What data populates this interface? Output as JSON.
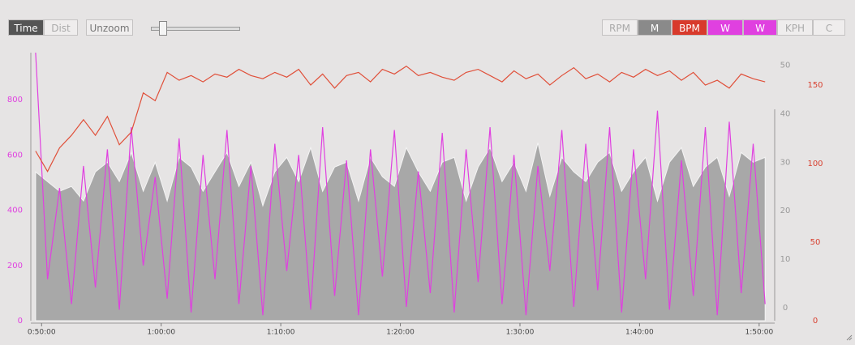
{
  "toolbar": {
    "left": [
      "Time",
      "Dist",
      "Unzoom"
    ],
    "right": [
      "RPM",
      "M",
      "BPM",
      "W",
      "W",
      "KPH",
      "C"
    ]
  },
  "chart_data": {
    "type": "line",
    "x": [
      49.5,
      50.5,
      51.5,
      52.5,
      53.5,
      54.5,
      55.5,
      56.5,
      57.5,
      58.5,
      59.5,
      60.5,
      61.5,
      62.5,
      63.5,
      64.5,
      65.5,
      66.5,
      67.5,
      68.5,
      69.5,
      70.5,
      71.5,
      72.5,
      73.5,
      74.5,
      75.5,
      76.5,
      77.5,
      78.5,
      79.5,
      80.5,
      81.5,
      82.5,
      83.5,
      84.5,
      85.5,
      86.5,
      87.5,
      88.5,
      89.5,
      90.5,
      91.5,
      92.5,
      93.5,
      94.5,
      95.5,
      96.5,
      97.5,
      98.5,
      99.5,
      100.5,
      101.5,
      102.5,
      103.5,
      104.5,
      105.5,
      106.5,
      107.5,
      108.5,
      109.5,
      110.5
    ],
    "xlim": [
      49.1,
      111.3
    ],
    "xticks": [
      {
        "value": 50,
        "label": "0:50:00"
      },
      {
        "value": 60,
        "label": "1:00:00"
      },
      {
        "value": 70,
        "label": "1:10:00"
      },
      {
        "value": 80,
        "label": "1:20:00"
      },
      {
        "value": 90,
        "label": "1:30:00"
      },
      {
        "value": 100,
        "label": "1:40:00"
      },
      {
        "value": 110,
        "label": "1:50:00"
      }
    ],
    "ylim": [
      0,
      970
    ],
    "yticks": [
      0,
      200,
      400,
      600,
      800
    ],
    "ytick_color": "#e040e0",
    "y2lim": [
      -2.7,
      52.6
    ],
    "y2ticks": [
      0,
      10,
      20,
      30,
      40,
      50
    ],
    "y2tick_color": "#999999",
    "y3lim": [
      0,
      170.6
    ],
    "y3ticks": [
      0,
      50,
      100,
      150
    ],
    "y3tick_color": "#d84030",
    "series": [
      {
        "kind": "area",
        "axis": "y2",
        "color": "#a8a8a8",
        "values": [
          28,
          26,
          24,
          25,
          22,
          28,
          30,
          26,
          32,
          24,
          30,
          22,
          31,
          29,
          24,
          28,
          32,
          25,
          30,
          21,
          28,
          31,
          26,
          33,
          24,
          29,
          30,
          22,
          31,
          27,
          25,
          33,
          28,
          24,
          30,
          31,
          22,
          29,
          33,
          26,
          30,
          24,
          34,
          23,
          31,
          28,
          26,
          30,
          32,
          24,
          28,
          31,
          22,
          30,
          33,
          25,
          29,
          31,
          23,
          32,
          30,
          31
        ]
      },
      {
        "kind": "line",
        "color": "#e040e0",
        "values": [
          970,
          150,
          480,
          60,
          560,
          120,
          620,
          40,
          700,
          200,
          520,
          80,
          660,
          30,
          600,
          150,
          690,
          60,
          560,
          20,
          640,
          180,
          600,
          40,
          700,
          90,
          580,
          20,
          620,
          160,
          690,
          50,
          540,
          100,
          680,
          30,
          620,
          140,
          700,
          60,
          600,
          20,
          560,
          180,
          690,
          50,
          640,
          110,
          700,
          30,
          620,
          150,
          760,
          40,
          580,
          90,
          700,
          20,
          720,
          100,
          640,
          60
        ]
      },
      {
        "kind": "line",
        "axis": "y3",
        "color": "#e0503a",
        "values": [
          108,
          95,
          110,
          118,
          128,
          118,
          130,
          112,
          120,
          145,
          140,
          158,
          153,
          156,
          152,
          157,
          155,
          160,
          156,
          154,
          158,
          155,
          160,
          150,
          157,
          148,
          156,
          158,
          152,
          160,
          157,
          162,
          156,
          158,
          155,
          153,
          158,
          160,
          156,
          152,
          159,
          154,
          157,
          150,
          156,
          161,
          154,
          157,
          152,
          158,
          155,
          160,
          156,
          159,
          153,
          158,
          150,
          153,
          148,
          157,
          154,
          152
        ]
      }
    ]
  }
}
